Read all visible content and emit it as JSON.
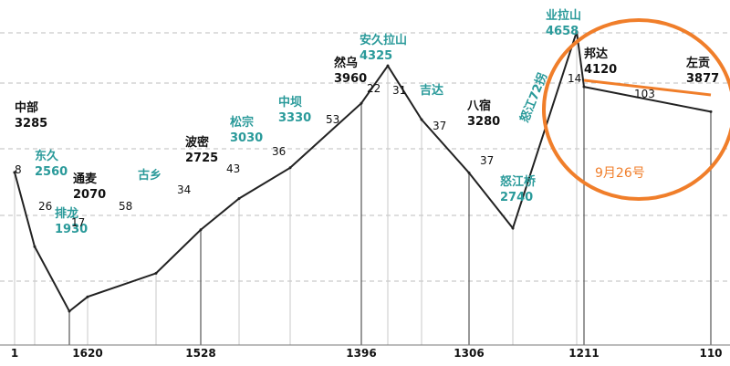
{
  "chart_data": {
    "type": "line",
    "title": "",
    "xlabel": "",
    "ylabel": "",
    "ylim": [
      1600,
      4700
    ],
    "grid": true,
    "line_color": "#222222",
    "highlight_color": "#f07e2a",
    "label_colors": {
      "black": "#111111",
      "teal": "#2a9a9a"
    },
    "points": [
      {
        "name": "邦",
        "alt": "",
        "label": "邦",
        "value": "",
        "color": "black",
        "elev": 3285
      },
      {
        "name": "中部",
        "alt": "3285",
        "label": "中部",
        "value": "3285",
        "color": "black",
        "elev": 3285
      },
      {
        "name": "东久",
        "alt": "2560",
        "label": "东久",
        "value": "2560",
        "color": "teal",
        "elev": 2560
      },
      {
        "name": "排龙",
        "alt": "1930",
        "label": "排龙",
        "value": "1930",
        "color": "teal",
        "elev": 1930
      },
      {
        "name": "通麦",
        "alt": "2070",
        "label": "通麦",
        "value": "2070",
        "color": "black",
        "elev": 2070
      },
      {
        "name": "古乡",
        "alt": "",
        "label": "古乡",
        "value": "",
        "color": "teal",
        "elev": 2300
      },
      {
        "name": "波密",
        "alt": "2725",
        "label": "波密",
        "value": "2725",
        "color": "black",
        "elev": 2725
      },
      {
        "name": "松宗",
        "alt": "3030",
        "label": "松宗",
        "value": "3030",
        "color": "teal",
        "elev": 3030
      },
      {
        "name": "中坝",
        "alt": "3330",
        "label": "中坝",
        "value": "3330",
        "color": "teal",
        "elev": 3330
      },
      {
        "name": "然乌",
        "alt": "3960",
        "label": "然乌",
        "value": "3960",
        "color": "black",
        "elev": 3960
      },
      {
        "name": "安久拉山",
        "alt": "4325",
        "label": "安久拉山",
        "value": "4325",
        "color": "teal",
        "elev": 4325
      },
      {
        "name": "吉达",
        "alt": "",
        "label": "吉达",
        "value": "",
        "color": "teal",
        "elev": 3800
      },
      {
        "name": "八宿",
        "alt": "3280",
        "label": "八宿",
        "value": "3280",
        "color": "black",
        "elev": 3280
      },
      {
        "name": "怒江桥",
        "alt": "2740",
        "label": "怒江桥",
        "value": "2740",
        "color": "teal",
        "elev": 2740
      },
      {
        "name": "业拉山",
        "alt": "4658",
        "label": "业拉山",
        "value": "4658",
        "color": "teal",
        "elev": 4658
      },
      {
        "name": "邦达",
        "alt": "4120",
        "label": "邦达",
        "value": "4120",
        "color": "black",
        "elev": 4120
      },
      {
        "name": "左贡",
        "alt": "3877",
        "label": "左贡",
        "value": "3877",
        "color": "black",
        "elev": 3877
      }
    ],
    "segment_distances": [
      "8",
      "26",
      "17",
      "58",
      "34",
      "43",
      "36",
      "53",
      "22",
      "31",
      "37",
      "37",
      "72",
      "14",
      "103"
    ],
    "x_ticks": [
      "1",
      "1620",
      "1528",
      "1396",
      "1306",
      "1211",
      "110"
    ],
    "vertical_text": "怒江72拐",
    "annotation": {
      "text": "9月26号"
    }
  }
}
